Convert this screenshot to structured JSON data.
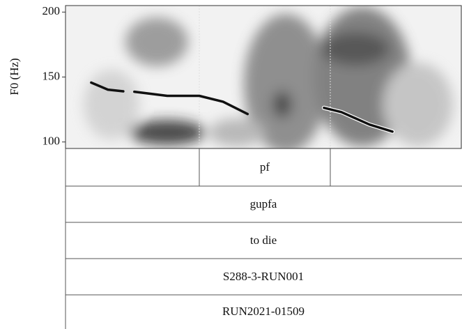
{
  "chart_data": {
    "type": "line",
    "y_label": "F0 (Hz)",
    "ylim": [
      95,
      205
    ],
    "yticks": [
      100,
      150,
      200
    ],
    "xlim": [
      0,
      1
    ],
    "x": [
      0.065,
      0.107,
      0.146,
      null,
      0.174,
      0.257,
      0.338,
      0.398,
      0.46,
      null,
      0.653,
      0.697,
      0.768,
      0.826
    ],
    "series": [
      {
        "color": "#111111",
        "values": [
          145.7,
          140.3,
          139,
          null,
          138.7,
          135.5,
          135.5,
          131,
          121.5,
          null,
          126.3,
          123,
          113.4,
          108
        ]
      }
    ],
    "tiers": [
      "pf",
      "gupfa",
      "to die",
      "S288-3-RUN001",
      "RUN2021-01509"
    ]
  }
}
